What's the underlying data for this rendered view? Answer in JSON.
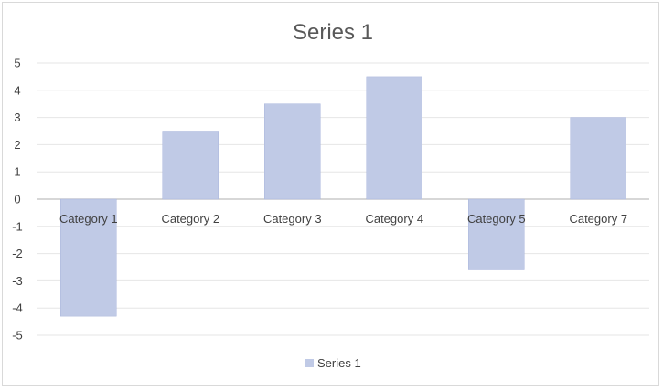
{
  "chart_data": {
    "type": "bar",
    "title": "Series 1",
    "categories": [
      "Category 1",
      "Category 2",
      "Category 3",
      "Category 4",
      "Category 5",
      "Category 7"
    ],
    "series": [
      {
        "name": "Series 1",
        "values": [
          -4.3,
          2.5,
          3.5,
          4.5,
          -2.6,
          3.0
        ]
      }
    ],
    "ylim": [
      -5,
      5
    ],
    "yticks": [
      5,
      4,
      3,
      2,
      1,
      0,
      -1,
      -2,
      -3,
      -4,
      -5
    ],
    "xlabel": "",
    "ylabel": "",
    "grid": true,
    "legend_position": "bottom"
  },
  "colors": {
    "bar": "#c0cae6",
    "bar_edge": "#aab6dc"
  }
}
